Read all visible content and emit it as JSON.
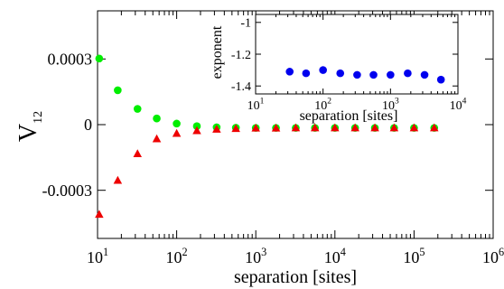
{
  "chart_data": [
    {
      "type": "scatter",
      "xscale": "log",
      "xlim": [
        10,
        1000000
      ],
      "ylim": [
        -0.00052,
        0.00052
      ],
      "xlabel": "separation [sites]",
      "ylabel": "V",
      "ylabel_sub": "12",
      "x_ticks": [
        10,
        100,
        1000,
        10000,
        100000,
        1000000
      ],
      "x_tick_labels": [
        {
          "base": "10",
          "exp": "1"
        },
        {
          "base": "10",
          "exp": "2"
        },
        {
          "base": "10",
          "exp": "3"
        },
        {
          "base": "10",
          "exp": "4"
        },
        {
          "base": "10",
          "exp": "5"
        },
        {
          "base": "10",
          "exp": "6"
        }
      ],
      "y_ticks": [
        -0.0003,
        0,
        0.0003
      ],
      "y_tick_labels": [
        "-0.0003",
        "0",
        "0.0003"
      ],
      "series": [
        {
          "marker": "circle",
          "color": "#00ee00",
          "x": [
            10.5,
            18,
            32,
            56,
            100,
            180,
            320,
            560,
            1000,
            1800,
            3200,
            5600,
            10000,
            18000,
            32000,
            56000,
            100000,
            180000
          ],
          "y": [
            0.000302,
            0.000157,
            7.2e-05,
            2.8e-05,
            4.7e-06,
            -7e-06,
            -1.2e-05,
            -1.4e-05,
            -1.5e-05,
            -1.5e-05,
            -1.5e-05,
            -1.5e-05,
            -1.5e-05,
            -1.5e-05,
            -1.5e-05,
            -1.5e-05,
            -1.5e-05,
            -1.5e-05
          ]
        },
        {
          "marker": "triangle",
          "color": "#ee0000",
          "x": [
            10.5,
            18,
            32,
            56,
            100,
            180,
            320,
            560,
            1000,
            1800,
            3200,
            5600,
            10000,
            18000,
            32000,
            56000,
            100000,
            180000
          ],
          "y": [
            -0.00041,
            -0.000255,
            -0.000133,
            -6.5e-05,
            -4e-05,
            -2.8e-05,
            -2.1e-05,
            -1.8e-05,
            -1.6e-05,
            -1.6e-05,
            -1.5e-05,
            -1.5e-05,
            -1.5e-05,
            -1.5e-05,
            -1.5e-05,
            -1.5e-05,
            -1.5e-05,
            -1.5e-05
          ]
        }
      ]
    },
    {
      "type": "scatter",
      "xscale": "log",
      "xlim": [
        10,
        10000
      ],
      "ylim": [
        -1.45,
        -0.95
      ],
      "xlabel": "separation [sites]",
      "ylabel": "exponent",
      "x_ticks": [
        10,
        100,
        1000,
        10000
      ],
      "x_tick_labels": [
        {
          "base": "10",
          "exp": "1"
        },
        {
          "base": "10",
          "exp": "2"
        },
        {
          "base": "10",
          "exp": "3"
        },
        {
          "base": "10",
          "exp": "4"
        }
      ],
      "y_ticks": [
        -1.4,
        -1.2,
        -1
      ],
      "y_tick_labels": [
        "-1.4",
        "-1.2",
        "-1"
      ],
      "series": [
        {
          "marker": "circle",
          "color": "#0000ee",
          "x": [
            32,
            56,
            100,
            180,
            320,
            560,
            1000,
            1800,
            3200,
            5600
          ],
          "y": [
            -1.31,
            -1.32,
            -1.3,
            -1.32,
            -1.33,
            -1.33,
            -1.33,
            -1.32,
            -1.33,
            -1.36
          ]
        }
      ]
    }
  ]
}
